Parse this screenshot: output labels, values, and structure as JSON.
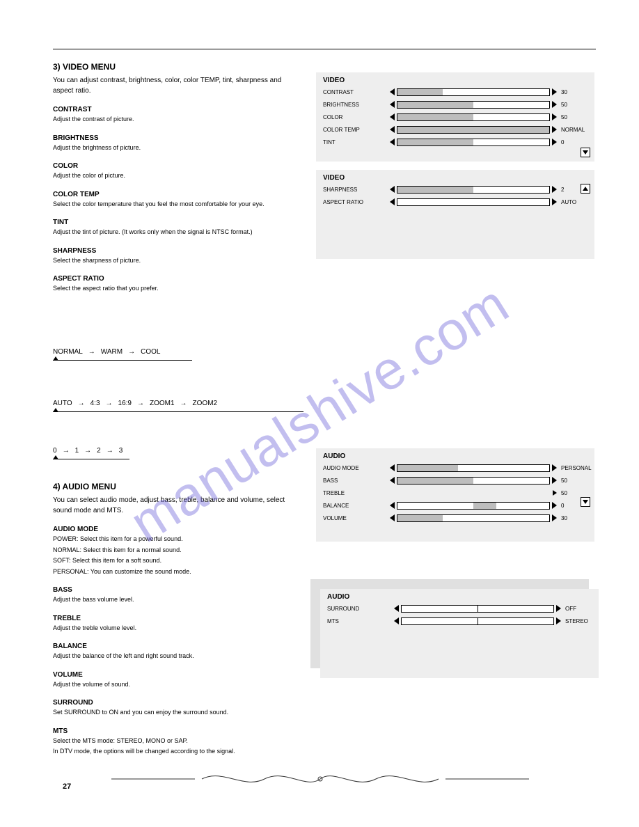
{
  "header_rule": true,
  "pageNumber": "27",
  "watermark": "manualshive.com",
  "sections": {
    "videoMenu": {
      "title": "3) VIDEO MENU",
      "intro": "You can adjust contrast, brightness, color, color TEMP, tint, sharpness and aspect ratio.",
      "items": [
        {
          "label": "CONTRAST",
          "desc": "Adjust the contrast of picture."
        },
        {
          "label": "BRIGHTNESS",
          "desc": "Adjust the brightness of picture."
        },
        {
          "label": "COLOR",
          "desc": "Adjust the color of picture."
        },
        {
          "label": "COLOR TEMP",
          "desc": "Select the color temperature that you feel the most comfortable for your eye."
        }
      ],
      "colorTempFlow": [
        "NORMAL",
        "WARM",
        "COOL"
      ],
      "aspectFlow": [
        "AUTO",
        "4:3",
        "16:9",
        "ZOOM1",
        "ZOOM2"
      ],
      "sharpnessFlow": [
        "0",
        "1",
        "2",
        "3"
      ],
      "sharpnessLabel": "SHARPNESS",
      "sharpnessDesc": "Select the sharpness of picture.",
      "aspectLabel": "ASPECT RATIO",
      "aspectDesc": "Select the aspect ratio that you prefer.",
      "tintLabel": "TINT",
      "tintDesc": "Adjust the tint of picture. (It works only when the signal is NTSC format.)"
    },
    "audioMenu": {
      "title": "4) AUDIO MENU",
      "intro": "You can select audio mode, adjust bass, treble, balance and volume, select sound mode and MTS.",
      "items": [
        {
          "label": "AUDIO MODE",
          "desc": [
            "POWER: Select this item for a powerful sound.",
            "NORMAL: Select this item for a normal sound.",
            "SOFT: Select this item for a soft sound.",
            "PERSONAL: You can customize the sound mode."
          ]
        },
        {
          "label": "BASS",
          "desc": [
            "Adjust the bass volume level."
          ]
        },
        {
          "label": "TREBLE",
          "desc": [
            "Adjust the treble volume level."
          ]
        },
        {
          "label": "BALANCE",
          "desc": [
            "Adjust the balance of the left and right sound track."
          ]
        },
        {
          "label": "VOLUME",
          "desc": [
            "Adjust the volume of sound."
          ]
        },
        {
          "label": "SURROUND",
          "desc": [
            "Set SURROUND to ON and you can enjoy the surround sound."
          ]
        },
        {
          "label": "MTS",
          "desc": [
            "Select the MTS mode: STEREO, MONO or SAP.",
            "In DTV mode, the options will be changed according to the signal."
          ]
        }
      ]
    }
  },
  "panels": {
    "video1": {
      "title": "VIDEO",
      "rows": [
        {
          "label": "CONTRAST",
          "value": "30",
          "fillPct": 30
        },
        {
          "label": "BRIGHTNESS",
          "value": "50",
          "fillPct": 50
        },
        {
          "label": "COLOR",
          "value": "50",
          "fillPct": 50
        },
        {
          "label": "COLOR TEMP",
          "value": "NORMAL",
          "fillPct": 100
        },
        {
          "label": "TINT",
          "value": "0",
          "fillPct": 50
        }
      ],
      "downBtn": true
    },
    "video2": {
      "title": "VIDEO",
      "rows": [
        {
          "label": "SHARPNESS",
          "value": "2",
          "fillPct": 50
        },
        {
          "label": "ASPECT RATIO",
          "value": "AUTO",
          "fillPct": 0
        }
      ],
      "upBtn": true
    },
    "audio1": {
      "title": "AUDIO",
      "rows": [
        {
          "label": "AUDIO MODE",
          "value": "PERSONAL",
          "fillPct": 40,
          "hasArrows": true
        },
        {
          "label": "BASS",
          "value": "50",
          "fillPct": 50,
          "hasArrows": true
        },
        {
          "label": "TREBLE",
          "value": "50",
          "fillPct": 0,
          "noBar": true,
          "rightArrowOnly": true
        },
        {
          "label": "BALANCE",
          "value": "0",
          "fillPct": 50,
          "hasArrows": true,
          "isCenter": true,
          "centerFill": 15
        },
        {
          "label": "VOLUME",
          "value": "30",
          "fillPct": 30,
          "hasArrows": true
        }
      ],
      "downBtn": true
    },
    "audio2a": {
      "title": "AUDIO",
      "rows": [],
      "shadow": true
    },
    "audio2": {
      "title": "AUDIO",
      "rows": [
        {
          "label": "SURROUND",
          "value": "OFF",
          "fillPct": 0,
          "hasArrows": true,
          "isCenter": true
        },
        {
          "label": "MTS",
          "value": "STEREO",
          "fillPct": 0,
          "hasArrows": true,
          "isCenter": true
        }
      ]
    }
  }
}
